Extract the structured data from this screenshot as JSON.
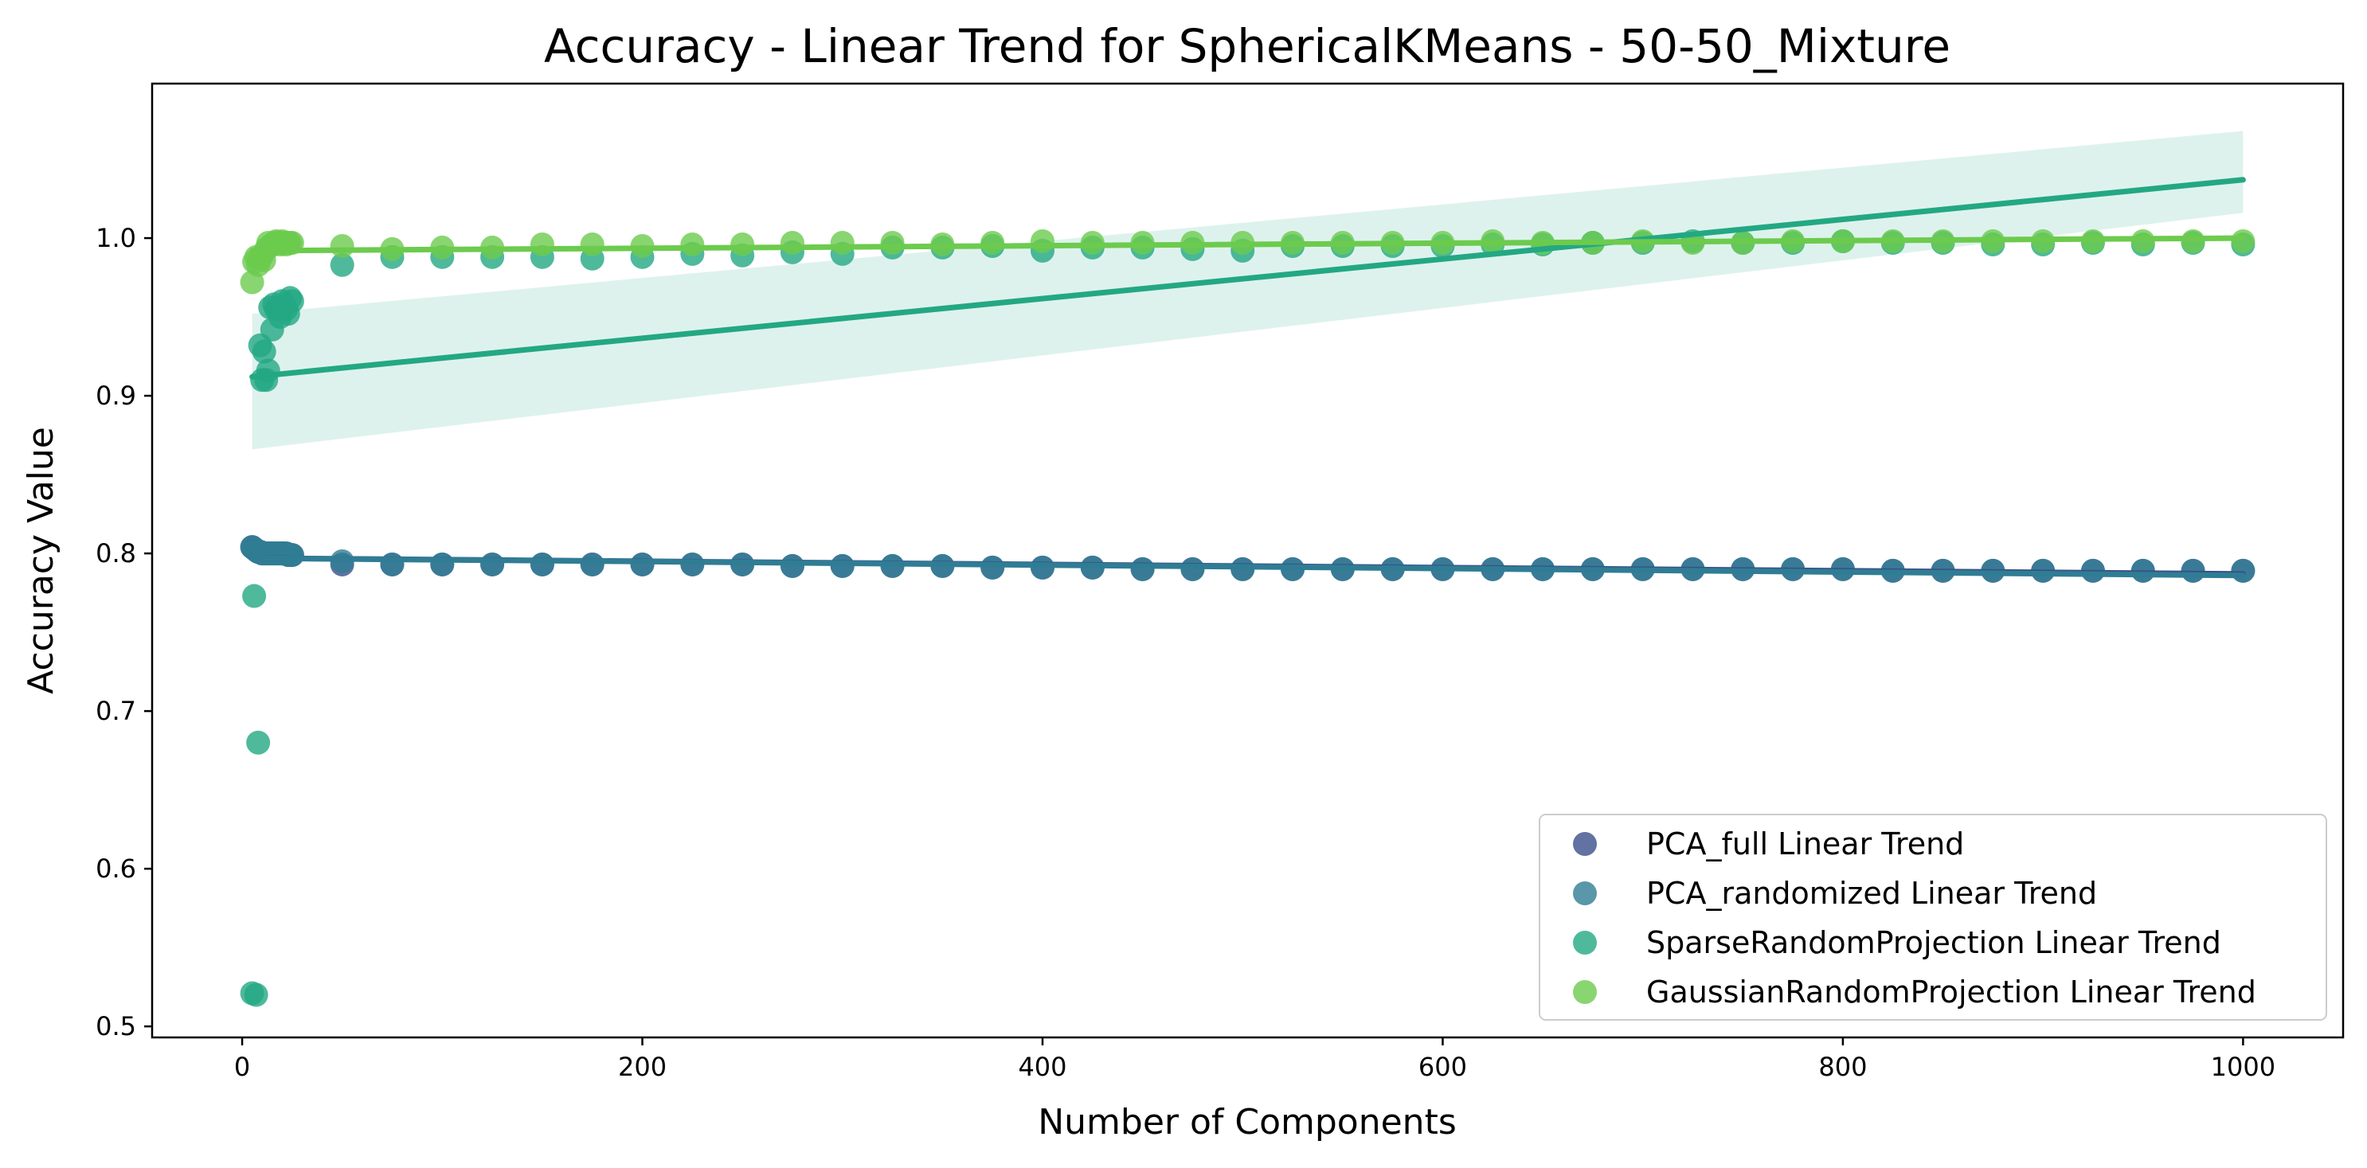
{
  "chart_data": {
    "type": "scatter",
    "title": "Accuracy - Linear Trend for SphericalKMeans - 50-50_Mixture",
    "xlabel": "Number of Components",
    "ylabel": "Accuracy Value",
    "xlim": [
      -45,
      1050
    ],
    "ylim": [
      0.493,
      1.098
    ],
    "xticks": [
      0,
      200,
      400,
      600,
      800,
      1000
    ],
    "yticks": [
      0.5,
      0.6,
      0.7,
      0.8,
      0.9,
      1.0
    ],
    "xtick_labels": [
      "0",
      "200",
      "400",
      "600",
      "800",
      "1000"
    ],
    "ytick_labels": [
      "0.5",
      "0.6",
      "0.7",
      "0.8",
      "0.9",
      "1.0"
    ],
    "legend_position": "lower-right",
    "grid": false,
    "series": [
      {
        "name": "PCA_full Linear Trend",
        "color": "#3b4f8a",
        "x": [
          5,
          6,
          7,
          8,
          9,
          10,
          11,
          12,
          13,
          14,
          15,
          16,
          17,
          18,
          19,
          20,
          21,
          22,
          23,
          24,
          25,
          50,
          75,
          100,
          125,
          150,
          175,
          200,
          225,
          250,
          275,
          300,
          325,
          350,
          375,
          400,
          425,
          450,
          475,
          500,
          525,
          550,
          575,
          600,
          625,
          650,
          675,
          700,
          725,
          750,
          775,
          800,
          825,
          850,
          875,
          900,
          925,
          950,
          975,
          1000
        ],
        "y": [
          0.804,
          0.803,
          0.802,
          0.801,
          0.801,
          0.8,
          0.8,
          0.8,
          0.8,
          0.8,
          0.8,
          0.8,
          0.8,
          0.8,
          0.8,
          0.8,
          0.8,
          0.8,
          0.799,
          0.799,
          0.799,
          0.793,
          0.793,
          0.793,
          0.793,
          0.793,
          0.793,
          0.793,
          0.793,
          0.793,
          0.792,
          0.792,
          0.792,
          0.792,
          0.791,
          0.791,
          0.791,
          0.79,
          0.79,
          0.79,
          0.79,
          0.79,
          0.79,
          0.79,
          0.79,
          0.79,
          0.79,
          0.79,
          0.79,
          0.79,
          0.79,
          0.79,
          0.789,
          0.789,
          0.789,
          0.789,
          0.789,
          0.789,
          0.789,
          0.789
        ],
        "trend": {
          "x": [
            5,
            1000
          ],
          "y": [
            0.797,
            0.787
          ]
        }
      },
      {
        "name": "PCA_randomized Linear Trend",
        "color": "#2f7d94",
        "x": [
          5,
          6,
          7,
          8,
          9,
          10,
          11,
          12,
          13,
          14,
          15,
          16,
          17,
          18,
          19,
          20,
          21,
          22,
          23,
          24,
          25,
          50,
          75,
          100,
          125,
          150,
          175,
          200,
          225,
          250,
          275,
          300,
          325,
          350,
          375,
          400,
          425,
          450,
          475,
          500,
          525,
          550,
          575,
          600,
          625,
          650,
          675,
          700,
          725,
          750,
          775,
          800,
          825,
          850,
          875,
          900,
          925,
          950,
          975,
          1000
        ],
        "y": [
          0.804,
          0.803,
          0.802,
          0.801,
          0.801,
          0.8,
          0.8,
          0.8,
          0.8,
          0.8,
          0.8,
          0.8,
          0.8,
          0.8,
          0.8,
          0.8,
          0.8,
          0.8,
          0.799,
          0.799,
          0.799,
          0.795,
          0.793,
          0.793,
          0.793,
          0.793,
          0.793,
          0.793,
          0.793,
          0.793,
          0.792,
          0.792,
          0.792,
          0.792,
          0.791,
          0.791,
          0.791,
          0.79,
          0.79,
          0.79,
          0.79,
          0.79,
          0.79,
          0.79,
          0.79,
          0.79,
          0.79,
          0.79,
          0.79,
          0.79,
          0.79,
          0.79,
          0.789,
          0.789,
          0.789,
          0.789,
          0.789,
          0.789,
          0.789,
          0.789
        ],
        "trend": {
          "x": [
            5,
            1000
          ],
          "y": [
            0.797,
            0.786
          ]
        }
      },
      {
        "name": "SparseRandomProjection Linear Trend",
        "color": "#23a883",
        "x": [
          5,
          6,
          7,
          8,
          9,
          10,
          11,
          12,
          13,
          14,
          15,
          16,
          17,
          18,
          19,
          20,
          21,
          22,
          23,
          24,
          25,
          50,
          75,
          100,
          125,
          150,
          175,
          200,
          225,
          250,
          275,
          300,
          325,
          350,
          375,
          400,
          425,
          450,
          475,
          500,
          525,
          550,
          575,
          600,
          625,
          650,
          675,
          700,
          725,
          750,
          775,
          800,
          825,
          850,
          875,
          900,
          925,
          950,
          975,
          1000
        ],
        "y": [
          0.521,
          0.773,
          0.52,
          0.68,
          0.932,
          0.91,
          0.928,
          0.91,
          0.916,
          0.956,
          0.942,
          0.958,
          0.955,
          0.956,
          0.95,
          0.96,
          0.957,
          0.955,
          0.952,
          0.962,
          0.96,
          0.983,
          0.988,
          0.988,
          0.988,
          0.988,
          0.987,
          0.988,
          0.99,
          0.989,
          0.991,
          0.99,
          0.994,
          0.994,
          0.995,
          0.992,
          0.994,
          0.994,
          0.993,
          0.992,
          0.995,
          0.995,
          0.995,
          0.995,
          0.996,
          0.996,
          0.997,
          0.997,
          0.998,
          0.997,
          0.997,
          0.998,
          0.997,
          0.997,
          0.996,
          0.996,
          0.997,
          0.996,
          0.997,
          0.996
        ],
        "trend": {
          "x": [
            5,
            1000
          ],
          "y": [
            0.912,
            1.037
          ]
        },
        "ci": {
          "x": [
            5,
            1000
          ],
          "lower": [
            0.866,
            1.016
          ],
          "upper": [
            0.952,
            1.068
          ]
        }
      },
      {
        "name": "GaussianRandomProjection Linear Trend",
        "color": "#6ccb4d",
        "x": [
          5,
          6,
          7,
          8,
          9,
          10,
          11,
          12,
          13,
          14,
          15,
          16,
          17,
          18,
          19,
          20,
          21,
          22,
          23,
          24,
          25,
          50,
          75,
          100,
          125,
          150,
          175,
          200,
          225,
          250,
          275,
          300,
          325,
          350,
          375,
          400,
          425,
          450,
          475,
          500,
          525,
          550,
          575,
          600,
          625,
          650,
          675,
          700,
          725,
          750,
          775,
          800,
          825,
          850,
          875,
          900,
          925,
          950,
          975,
          1000
        ],
        "y": [
          0.972,
          0.985,
          0.988,
          0.983,
          0.987,
          0.989,
          0.986,
          0.993,
          0.997,
          0.995,
          0.996,
          0.997,
          0.998,
          0.997,
          0.996,
          0.998,
          0.997,
          0.996,
          0.997,
          0.997,
          0.997,
          0.995,
          0.993,
          0.994,
          0.994,
          0.996,
          0.996,
          0.995,
          0.996,
          0.996,
          0.997,
          0.997,
          0.997,
          0.996,
          0.997,
          0.998,
          0.997,
          0.997,
          0.997,
          0.997,
          0.997,
          0.997,
          0.997,
          0.997,
          0.998,
          0.997,
          0.997,
          0.998,
          0.997,
          0.997,
          0.998,
          0.998,
          0.998,
          0.998,
          0.998,
          0.998,
          0.998,
          0.998,
          0.998,
          0.998
        ],
        "trend": {
          "x": [
            5,
            1000
          ],
          "y": [
            0.992,
            1.0
          ]
        }
      }
    ]
  }
}
